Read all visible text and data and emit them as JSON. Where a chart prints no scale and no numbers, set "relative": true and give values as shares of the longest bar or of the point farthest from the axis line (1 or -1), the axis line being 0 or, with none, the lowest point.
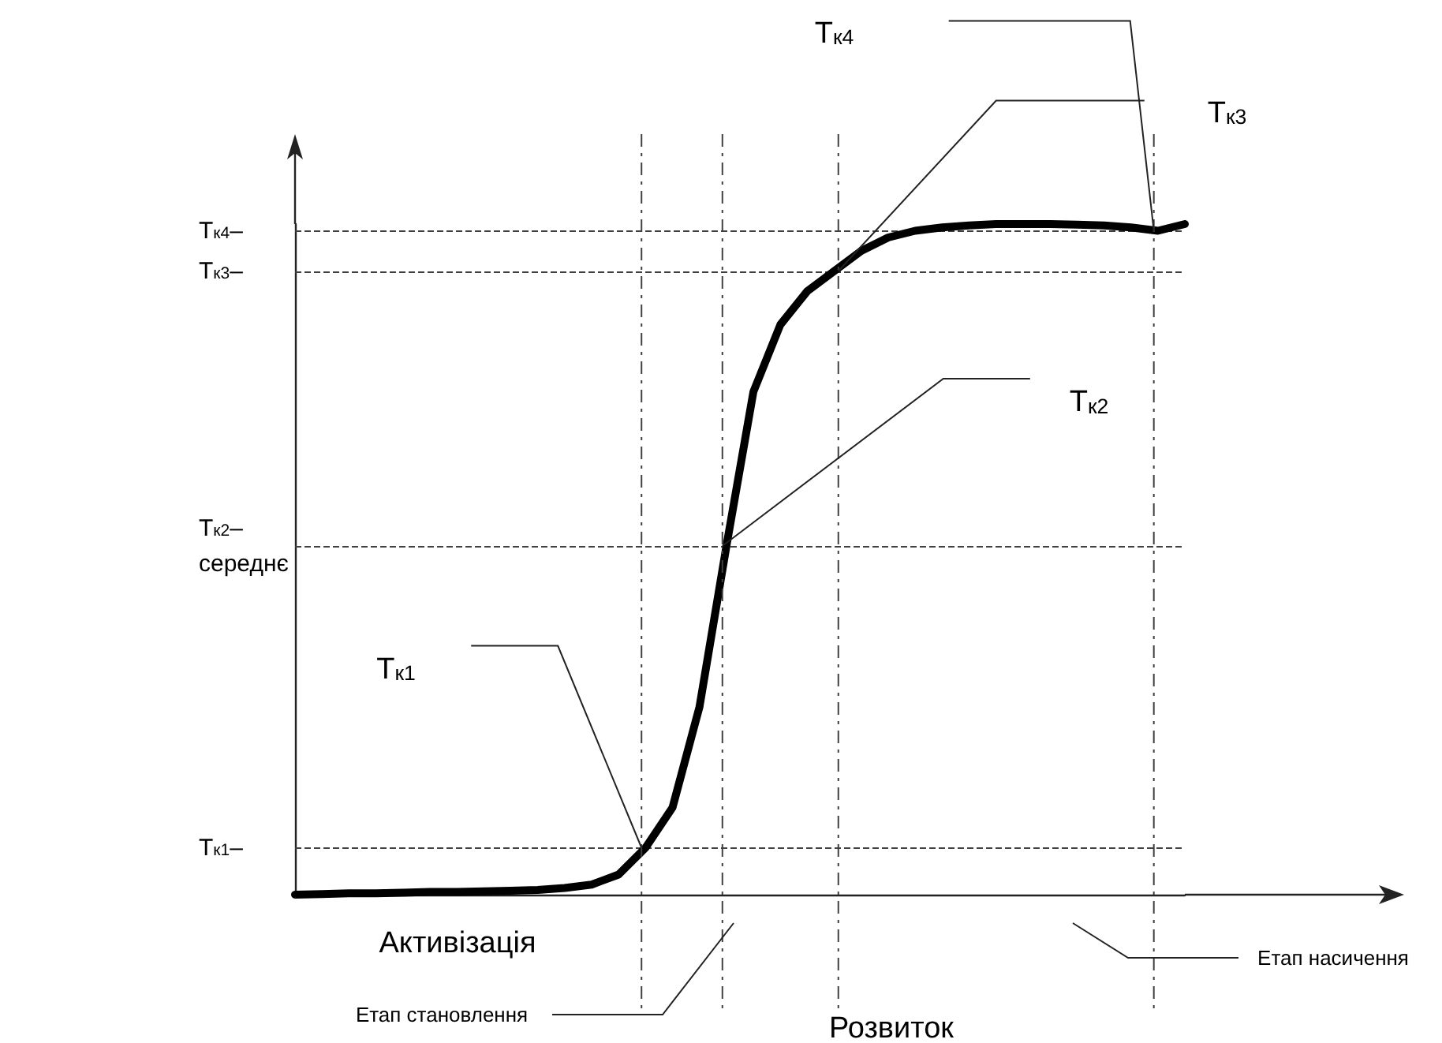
{
  "chart_data": {
    "type": "line",
    "relative": true,
    "categories": [
      null,
      null,
      null,
      null,
      null,
      null,
      null,
      null,
      null,
      null,
      null,
      null,
      null,
      null,
      null,
      null,
      null,
      null,
      null,
      null,
      null,
      null,
      null,
      null,
      null,
      null,
      null,
      null,
      null,
      null,
      null,
      null,
      null,
      null
    ],
    "series": [
      {
        "color": "#000000",
        "values": [
          0,
          0.001,
          0.002,
          0.002,
          0.003,
          0.004,
          0.004,
          0.005,
          0.006,
          0.007,
          0.01,
          0.015,
          0.03,
          0.07,
          0.13,
          0.28,
          0.52,
          0.75,
          0.85,
          0.9,
          0.93,
          0.96,
          0.98,
          0.99,
          0.995,
          0.998,
          1,
          1,
          1,
          0.999,
          0.998,
          0.995,
          0.99,
          1
        ]
      }
    ],
    "grid": false,
    "marker": "none",
    "line_style": "solid",
    "ref_lines": [
      {
        "axis": "y",
        "value": 0.99,
        "label": "Т$_{к4}$–",
        "line_style": "dashed",
        "color": "#404040"
      },
      {
        "axis": "y",
        "value": 0.93,
        "label": "Т$_{к3}$–",
        "line_style": "dashed",
        "color": "#404040"
      },
      {
        "axis": "y",
        "value": 0.52,
        "label": "Т$_{к2}$–\nсереднє",
        "line_style": "dashed",
        "color": "#404040"
      },
      {
        "axis": "y",
        "value": 0.07,
        "label": "Т$_{к1}$–",
        "line_style": "dashed",
        "color": "#404040"
      }
    ],
    "annotations": [
      "Т$_{к1}$",
      "Т$_{к2}$",
      "Т$_{к3}$",
      "Т$_{к4}$",
      "Активізація",
      "Етап становлення",
      "Розвиток",
      "Етап насичення"
    ]
  }
}
